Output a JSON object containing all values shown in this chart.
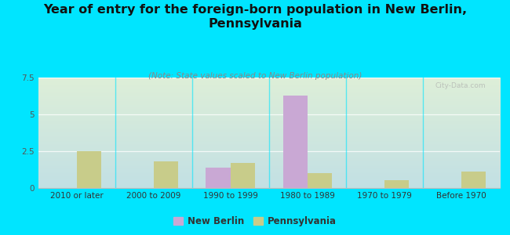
{
  "title": "Year of entry for the foreign-born population in New Berlin,\nPennsylvania",
  "subtitle": "(Note: State values scaled to New Berlin population)",
  "categories": [
    "2010 or later",
    "2000 to 2009",
    "1990 to 1999",
    "1980 to 1989",
    "1970 to 1979",
    "Before 1970"
  ],
  "new_berlin": [
    0,
    0,
    1.4,
    6.3,
    0,
    0
  ],
  "pennsylvania": [
    2.5,
    1.8,
    1.7,
    1.0,
    0.55,
    1.1
  ],
  "bar_color_nb": "#c9a8d4",
  "bar_color_pa": "#c8cc8a",
  "background_outer": "#00e5ff",
  "background_plot_topleft": "#deefd8",
  "background_plot_topright": "#daeee8",
  "background_plot_bottomleft": "#cce8d8",
  "background_plot_bottomright": "#c2e0e4",
  "ylim": [
    0,
    7.5
  ],
  "yticks": [
    0,
    2.5,
    5,
    7.5
  ],
  "bar_width": 0.32,
  "title_fontsize": 11.5,
  "subtitle_fontsize": 7.5,
  "tick_fontsize": 7.5,
  "legend_fontsize": 8.5,
  "watermark": "City-Data.com"
}
